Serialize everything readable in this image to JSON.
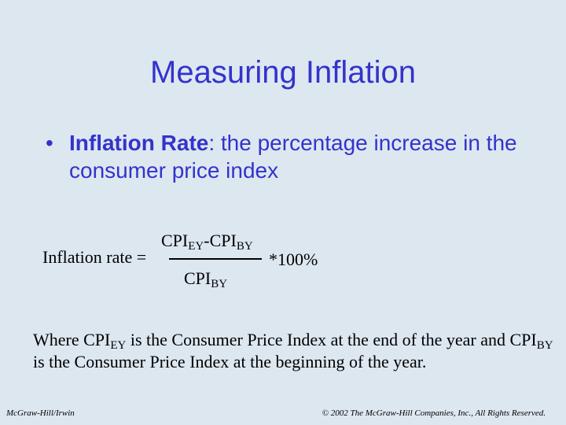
{
  "slide": {
    "title": "Measuring Inflation",
    "bullet": {
      "marker": "•",
      "term": "Inflation Rate",
      "definition": ": the percentage increase in the consumer price index"
    },
    "formula": {
      "label": "Inflation rate =",
      "cpi": "CPI",
      "ey": "EY",
      "by": "BY",
      "minus": "-",
      "multiplier": "*100%"
    },
    "explanation": {
      "part1": "Where CPI",
      "sub1": "EY",
      "part2": " is the Consumer Price Index at the end of the year and ",
      "part3": "CPI",
      "sub2": "BY",
      "part4": " is the Consumer Price Index at the beginning of the year."
    }
  },
  "footer": {
    "publisher": "McGraw-Hill/Irwin",
    "copyright": "© 2002 The McGraw-Hill Companies, Inc., All Rights Reserved."
  }
}
